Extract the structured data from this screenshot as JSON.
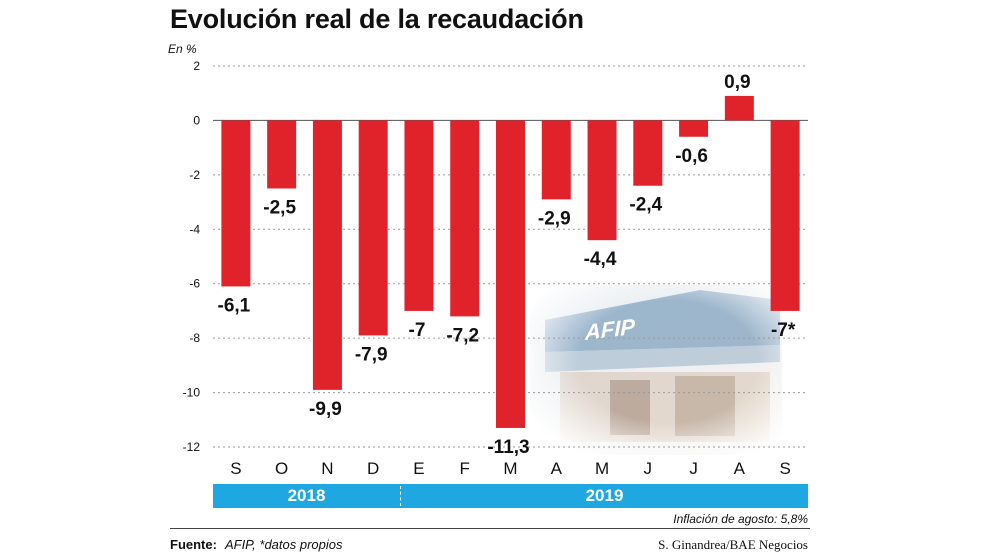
{
  "title": "Evolución real de la recaudación",
  "chart_data": {
    "type": "bar",
    "title": "Evolución real de la recaudación",
    "ylabel": "En %",
    "xlabel": "",
    "categories": [
      "S",
      "O",
      "N",
      "D",
      "E",
      "F",
      "M",
      "A",
      "M",
      "J",
      "J",
      "A",
      "S"
    ],
    "values": [
      -6.1,
      -2.5,
      -9.9,
      -7.9,
      -7,
      -7.2,
      -11.3,
      -2.9,
      -4.4,
      -2.4,
      -0.6,
      0.9,
      -7
    ],
    "data_labels": [
      "-6,1",
      "-2,5",
      "-9,9",
      "-7,9",
      "-7",
      "-7,2",
      "-11,3",
      "-2,9",
      "-4,4",
      "-2,4",
      "-0,6",
      "0,9",
      "-7*"
    ],
    "ylim": [
      -12,
      2
    ],
    "yticks": [
      2,
      0,
      -2,
      -4,
      -6,
      -8,
      -10,
      -12
    ],
    "bar_color": "#e0222b",
    "grid": "dotted-horizontal",
    "legend": "none"
  },
  "years": {
    "first": "2018",
    "second": "2019"
  },
  "note": "Inflación de agosto: 5,8%",
  "footer": {
    "source_label": "Fuente:",
    "source_text": "AFIP, *datos propios",
    "credit": "S. Ginandrea/BAE Negocios"
  },
  "colors": {
    "bar": "#e0222b",
    "band": "#1ea7e1",
    "text": "#111111"
  }
}
